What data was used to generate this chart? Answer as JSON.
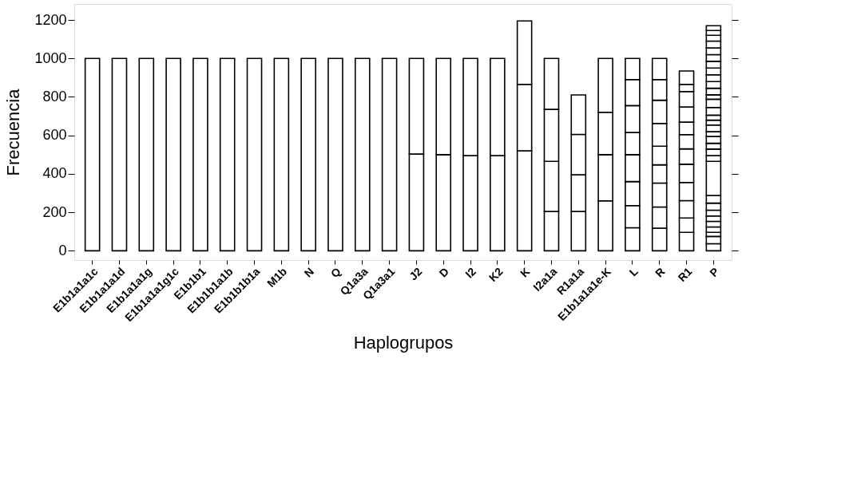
{
  "chart_data": {
    "type": "bar",
    "stacked": true,
    "xlabel": "Haplogrupos",
    "ylabel": "Frecuencia",
    "categories": [
      "E1b1a1a1c",
      "E1b1a1a1d",
      "E1b1a1a1g",
      "E1b1a1a1g1c",
      "E1b1b1",
      "E1b1b1a1b",
      "E1b1b1b1a",
      "M1b",
      "N",
      "Q",
      "Q1a3a",
      "Q1a3a1",
      "J2",
      "D",
      "I2",
      "K2",
      "K",
      "I2a1a",
      "R1a1a",
      "E1b1a1a1e-K",
      "L",
      "R",
      "R1",
      "P"
    ],
    "ylim": [
      -48,
      1283
    ],
    "yticks": [
      0,
      200,
      400,
      600,
      800,
      1000,
      1200
    ],
    "grid": false,
    "legend": false,
    "series": [
      {
        "color": "#ffffff",
        "values": [
          1000,
          1000,
          1000,
          1000,
          1000,
          1000,
          1000,
          1000,
          1000,
          1000,
          1000,
          1000,
          503,
          500,
          495,
          495,
          520,
          205,
          205,
          260,
          120,
          118,
          96,
          37
        ]
      },
      {
        "color": "#ffffff",
        "values": [
          null,
          null,
          null,
          null,
          null,
          null,
          null,
          null,
          null,
          null,
          null,
          null,
          497,
          500,
          505,
          505,
          345,
          260,
          190,
          240,
          115,
          110,
          75,
          38
        ]
      },
      {
        "color": "#ffffff",
        "values": [
          null,
          null,
          null,
          null,
          null,
          null,
          null,
          null,
          null,
          null,
          null,
          null,
          null,
          null,
          null,
          null,
          330,
          270,
          210,
          220,
          125,
          124,
          90,
          21
        ]
      },
      {
        "color": "#ffffff",
        "values": [
          null,
          null,
          null,
          null,
          null,
          null,
          null,
          null,
          null,
          null,
          null,
          null,
          null,
          null,
          null,
          null,
          null,
          265,
          205,
          280,
          140,
          95,
          94,
          28
        ]
      },
      {
        "color": "#ffffff",
        "values": [
          null,
          null,
          null,
          null,
          null,
          null,
          null,
          null,
          null,
          null,
          null,
          null,
          null,
          null,
          null,
          null,
          null,
          null,
          null,
          null,
          115,
          97,
          95,
          29
        ]
      },
      {
        "color": "#ffffff",
        "values": [
          null,
          null,
          null,
          null,
          null,
          null,
          null,
          null,
          null,
          null,
          null,
          null,
          null,
          null,
          null,
          null,
          null,
          null,
          null,
          null,
          140,
          118,
          80,
          28
        ]
      },
      {
        "color": "#ffffff",
        "values": [
          null,
          null,
          null,
          null,
          null,
          null,
          null,
          null,
          null,
          null,
          null,
          null,
          null,
          null,
          null,
          null,
          null,
          null,
          null,
          null,
          135,
          121,
          74,
          30
        ]
      },
      {
        "color": "#ffffff",
        "values": [
          null,
          null,
          null,
          null,
          null,
          null,
          null,
          null,
          null,
          null,
          null,
          null,
          null,
          null,
          null,
          null,
          null,
          null,
          null,
          null,
          110,
          107,
          65,
          37
        ]
      },
      {
        "color": "#ffffff",
        "values": [
          null,
          null,
          null,
          null,
          null,
          null,
          null,
          null,
          null,
          null,
          null,
          null,
          null,
          null,
          null,
          null,
          null,
          null,
          null,
          null,
          null,
          110,
          79,
          40
        ]
      },
      {
        "color": "#ffffff",
        "values": [
          null,
          null,
          null,
          null,
          null,
          null,
          null,
          null,
          null,
          null,
          null,
          null,
          null,
          null,
          null,
          null,
          null,
          null,
          null,
          null,
          null,
          null,
          80,
          177
        ]
      },
      {
        "color": "#ffffff",
        "values": [
          null,
          null,
          null,
          null,
          null,
          null,
          null,
          null,
          null,
          null,
          null,
          null,
          null,
          null,
          null,
          null,
          null,
          null,
          null,
          null,
          null,
          null,
          37,
          30
        ]
      },
      {
        "color": "#ffffff",
        "values": [
          null,
          null,
          null,
          null,
          null,
          null,
          null,
          null,
          null,
          null,
          null,
          null,
          null,
          null,
          null,
          null,
          null,
          null,
          null,
          null,
          null,
          null,
          70,
          34
        ]
      },
      {
        "color": "#ffffff",
        "values": [
          null,
          null,
          null,
          null,
          null,
          null,
          null,
          null,
          null,
          null,
          null,
          null,
          null,
          null,
          null,
          null,
          null,
          null,
          null,
          null,
          null,
          null,
          null,
          30
        ]
      },
      {
        "color": "#ffffff",
        "values": [
          null,
          null,
          null,
          null,
          null,
          null,
          null,
          null,
          null,
          null,
          null,
          null,
          null,
          null,
          null,
          null,
          null,
          null,
          null,
          null,
          null,
          null,
          null,
          35
        ]
      },
      {
        "color": "#ffffff",
        "values": [
          null,
          null,
          null,
          null,
          null,
          null,
          null,
          null,
          null,
          null,
          null,
          null,
          null,
          null,
          null,
          null,
          null,
          null,
          null,
          null,
          null,
          null,
          null,
          25
        ]
      },
      {
        "color": "#ffffff",
        "values": [
          null,
          null,
          null,
          null,
          null,
          null,
          null,
          null,
          null,
          null,
          null,
          null,
          null,
          null,
          null,
          null,
          null,
          null,
          null,
          null,
          null,
          null,
          null,
          35
        ]
      },
      {
        "color": "#ffffff",
        "values": [
          null,
          null,
          null,
          null,
          null,
          null,
          null,
          null,
          null,
          null,
          null,
          null,
          null,
          null,
          null,
          null,
          null,
          null,
          null,
          null,
          null,
          null,
          null,
          25
        ]
      },
      {
        "color": "#ffffff",
        "values": [
          null,
          null,
          null,
          null,
          null,
          null,
          null,
          null,
          null,
          null,
          null,
          null,
          null,
          null,
          null,
          null,
          null,
          null,
          null,
          null,
          null,
          null,
          null,
          26
        ]
      },
      {
        "color": "#ffffff",
        "values": [
          null,
          null,
          null,
          null,
          null,
          null,
          null,
          null,
          null,
          null,
          null,
          null,
          null,
          null,
          null,
          null,
          null,
          null,
          null,
          null,
          null,
          null,
          null,
          40
        ]
      },
      {
        "color": "#ffffff",
        "values": [
          null,
          null,
          null,
          null,
          null,
          null,
          null,
          null,
          null,
          null,
          null,
          null,
          null,
          null,
          null,
          null,
          null,
          null,
          null,
          null,
          null,
          null,
          null,
          43
        ]
      },
      {
        "color": "#ffffff",
        "values": [
          null,
          null,
          null,
          null,
          null,
          null,
          null,
          null,
          null,
          null,
          null,
          null,
          null,
          null,
          null,
          null,
          null,
          null,
          null,
          null,
          null,
          null,
          null,
          23
        ]
      },
      {
        "color": "#ffffff",
        "values": [
          null,
          null,
          null,
          null,
          null,
          null,
          null,
          null,
          null,
          null,
          null,
          null,
          null,
          null,
          null,
          null,
          null,
          null,
          null,
          null,
          null,
          null,
          null,
          34
        ]
      },
      {
        "color": "#ffffff",
        "values": [
          null,
          null,
          null,
          null,
          null,
          null,
          null,
          null,
          null,
          null,
          null,
          null,
          null,
          null,
          null,
          null,
          null,
          null,
          null,
          null,
          null,
          null,
          null,
          35
        ]
      },
      {
        "color": "#ffffff",
        "values": [
          null,
          null,
          null,
          null,
          null,
          null,
          null,
          null,
          null,
          null,
          null,
          null,
          null,
          null,
          null,
          null,
          null,
          null,
          null,
          null,
          null,
          null,
          null,
          35
        ]
      },
      {
        "color": "#ffffff",
        "values": [
          null,
          null,
          null,
          null,
          null,
          null,
          null,
          null,
          null,
          null,
          null,
          null,
          null,
          null,
          null,
          null,
          null,
          null,
          null,
          null,
          null,
          null,
          null,
          35
        ]
      },
      {
        "color": "#ffffff",
        "values": [
          null,
          null,
          null,
          null,
          null,
          null,
          null,
          null,
          null,
          null,
          null,
          null,
          null,
          null,
          null,
          null,
          null,
          null,
          null,
          null,
          null,
          null,
          null,
          35
        ]
      },
      {
        "color": "#ffffff",
        "values": [
          null,
          null,
          null,
          null,
          null,
          null,
          null,
          null,
          null,
          null,
          null,
          null,
          null,
          null,
          null,
          null,
          null,
          null,
          null,
          null,
          null,
          null,
          null,
          35
        ]
      },
      {
        "color": "#ffffff",
        "values": [
          null,
          null,
          null,
          null,
          null,
          null,
          null,
          null,
          null,
          null,
          null,
          null,
          null,
          null,
          null,
          null,
          null,
          null,
          null,
          null,
          null,
          null,
          null,
          35
        ]
      },
      {
        "color": "#ffffff",
        "values": [
          null,
          null,
          null,
          null,
          null,
          null,
          null,
          null,
          null,
          null,
          null,
          null,
          null,
          null,
          null,
          null,
          null,
          null,
          null,
          null,
          null,
          null,
          null,
          35
        ]
      },
      {
        "color": "#ffffff",
        "values": [
          null,
          null,
          null,
          null,
          null,
          null,
          null,
          null,
          null,
          null,
          null,
          null,
          null,
          null,
          null,
          null,
          null,
          null,
          null,
          null,
          null,
          null,
          null,
          30
        ]
      },
      {
        "color": "#ffffff",
        "values": [
          null,
          null,
          null,
          null,
          null,
          null,
          null,
          null,
          null,
          null,
          null,
          null,
          null,
          null,
          null,
          null,
          null,
          null,
          null,
          null,
          null,
          null,
          null,
          25
        ]
      },
      {
        "color": "#ffffff",
        "values": [
          null,
          null,
          null,
          null,
          null,
          null,
          null,
          null,
          null,
          null,
          null,
          null,
          null,
          null,
          null,
          null,
          null,
          null,
          null,
          null,
          null,
          null,
          null,
          25
        ]
      }
    ]
  }
}
